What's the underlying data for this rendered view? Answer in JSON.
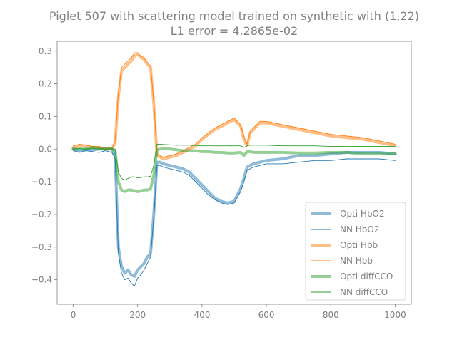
{
  "chart_data": {
    "type": "line",
    "title": "Piglet 507 with scattering model trained on synthetic with (1,22)",
    "subtitle": "L1 error = 4.2865e-02",
    "xlabel": "",
    "ylabel": "",
    "xlim": [
      -50,
      1050
    ],
    "ylim": [
      -0.475,
      0.33
    ],
    "xticks": [
      0,
      200,
      400,
      600,
      800,
      1000
    ],
    "yticks": [
      0.3,
      0.2,
      0.1,
      0.0,
      -0.1,
      -0.2,
      -0.3,
      -0.4
    ],
    "xtick_labels": [
      "0",
      "200",
      "400",
      "600",
      "800",
      "1000"
    ],
    "ytick_labels": [
      "0.3",
      "0.2",
      "0.1",
      "0.0",
      "−0.1",
      "−0.2",
      "−0.3",
      "−0.4"
    ],
    "grid": false,
    "legend_position": "lower-right",
    "series": [
      {
        "name": "Opti HbO2",
        "color": "#1f77b4",
        "style": "thick",
        "x": [
          0,
          20,
          40,
          60,
          80,
          100,
          120,
          130,
          140,
          150,
          160,
          170,
          180,
          190,
          200,
          210,
          220,
          230,
          240,
          250,
          260,
          270,
          280,
          300,
          320,
          340,
          360,
          380,
          400,
          420,
          440,
          460,
          480,
          500,
          520,
          530,
          540,
          550,
          560,
          580,
          600,
          650,
          700,
          750,
          800,
          850,
          900,
          950,
          1000
        ],
        "y": [
          0.0,
          -0.005,
          0.0,
          -0.003,
          0.0,
          0.002,
          0.0,
          -0.02,
          -0.3,
          -0.36,
          -0.38,
          -0.37,
          -0.385,
          -0.39,
          -0.37,
          -0.36,
          -0.35,
          -0.33,
          -0.32,
          -0.2,
          -0.04,
          -0.04,
          -0.045,
          -0.05,
          -0.055,
          -0.06,
          -0.07,
          -0.09,
          -0.11,
          -0.13,
          -0.15,
          -0.16,
          -0.165,
          -0.16,
          -0.12,
          -0.09,
          -0.055,
          -0.05,
          -0.045,
          -0.04,
          -0.035,
          -0.03,
          -0.02,
          -0.02,
          -0.015,
          -0.01,
          -0.01,
          -0.01,
          -0.015
        ]
      },
      {
        "name": "NN HbO2",
        "color": "#1f77b4",
        "style": "thin",
        "x": [
          0,
          20,
          40,
          60,
          80,
          100,
          120,
          130,
          140,
          150,
          160,
          170,
          180,
          190,
          200,
          210,
          220,
          230,
          240,
          250,
          260,
          270,
          280,
          300,
          320,
          340,
          360,
          380,
          400,
          420,
          440,
          460,
          480,
          500,
          520,
          530,
          540,
          550,
          560,
          580,
          600,
          650,
          700,
          750,
          800,
          850,
          900,
          950,
          1000
        ],
        "y": [
          -0.005,
          -0.01,
          -0.005,
          -0.008,
          -0.01,
          -0.005,
          -0.01,
          -0.03,
          -0.32,
          -0.38,
          -0.4,
          -0.395,
          -0.41,
          -0.42,
          -0.395,
          -0.385,
          -0.37,
          -0.35,
          -0.33,
          -0.21,
          -0.05,
          -0.05,
          -0.055,
          -0.06,
          -0.065,
          -0.07,
          -0.08,
          -0.1,
          -0.12,
          -0.14,
          -0.155,
          -0.165,
          -0.17,
          -0.165,
          -0.13,
          -0.1,
          -0.065,
          -0.06,
          -0.055,
          -0.05,
          -0.045,
          -0.045,
          -0.04,
          -0.035,
          -0.035,
          -0.03,
          -0.03,
          -0.03,
          -0.035
        ]
      },
      {
        "name": "Opti Hbb",
        "color": "#ff7f0e",
        "style": "thick",
        "x": [
          0,
          20,
          40,
          60,
          80,
          100,
          120,
          130,
          140,
          150,
          160,
          170,
          180,
          190,
          200,
          210,
          220,
          230,
          240,
          250,
          260,
          270,
          280,
          300,
          320,
          340,
          360,
          380,
          400,
          420,
          440,
          460,
          480,
          500,
          520,
          530,
          540,
          550,
          560,
          580,
          600,
          650,
          700,
          750,
          800,
          850,
          900,
          950,
          1000
        ],
        "y": [
          0.005,
          0.01,
          0.01,
          0.005,
          0.005,
          0.0,
          0.0,
          0.02,
          0.16,
          0.24,
          0.25,
          0.26,
          0.27,
          0.285,
          0.29,
          0.28,
          0.275,
          0.26,
          0.25,
          0.14,
          -0.02,
          -0.025,
          -0.03,
          -0.025,
          -0.02,
          -0.01,
          0.0,
          0.01,
          0.03,
          0.045,
          0.06,
          0.07,
          0.08,
          0.09,
          0.07,
          0.03,
          0.01,
          0.05,
          0.06,
          0.08,
          0.08,
          0.07,
          0.06,
          0.05,
          0.04,
          0.035,
          0.03,
          0.02,
          0.01
        ]
      },
      {
        "name": "NN Hbb",
        "color": "#ff7f0e",
        "style": "thin",
        "x": [
          0,
          20,
          40,
          60,
          80,
          100,
          120,
          130,
          140,
          150,
          160,
          170,
          180,
          190,
          200,
          210,
          220,
          230,
          240,
          250,
          260,
          270,
          280,
          300,
          320,
          340,
          360,
          380,
          400,
          420,
          440,
          460,
          480,
          500,
          520,
          530,
          540,
          550,
          560,
          580,
          600,
          650,
          700,
          750,
          800,
          850,
          900,
          950,
          1000
        ],
        "y": [
          0.01,
          0.015,
          0.012,
          0.008,
          0.008,
          0.003,
          0.002,
          0.025,
          0.17,
          0.25,
          0.26,
          0.27,
          0.28,
          0.295,
          0.295,
          0.285,
          0.28,
          0.265,
          0.255,
          0.145,
          -0.015,
          -0.02,
          -0.025,
          -0.02,
          -0.015,
          -0.005,
          0.005,
          0.015,
          0.035,
          0.05,
          0.065,
          0.075,
          0.085,
          0.095,
          0.075,
          0.04,
          0.015,
          0.055,
          0.065,
          0.085,
          0.085,
          0.075,
          0.065,
          0.055,
          0.045,
          0.04,
          0.035,
          0.025,
          0.015
        ]
      },
      {
        "name": "Opti diffCCO",
        "color": "#2ca02c",
        "style": "thick",
        "x": [
          0,
          20,
          40,
          60,
          80,
          100,
          120,
          130,
          140,
          150,
          160,
          170,
          180,
          190,
          200,
          210,
          220,
          230,
          240,
          250,
          260,
          270,
          280,
          300,
          320,
          340,
          360,
          380,
          400,
          420,
          440,
          460,
          480,
          500,
          520,
          530,
          540,
          550,
          560,
          580,
          600,
          650,
          700,
          750,
          800,
          850,
          900,
          950,
          1000
        ],
        "y": [
          0.0,
          0.0,
          0.0,
          0.005,
          0.0,
          0.0,
          0.0,
          -0.005,
          -0.1,
          -0.125,
          -0.13,
          -0.125,
          -0.125,
          -0.128,
          -0.13,
          -0.128,
          -0.125,
          -0.125,
          -0.122,
          -0.08,
          -0.002,
          0.0,
          0.002,
          0.0,
          -0.002,
          -0.005,
          -0.005,
          -0.005,
          -0.008,
          -0.008,
          -0.01,
          -0.01,
          -0.012,
          -0.012,
          -0.01,
          -0.02,
          -0.008,
          -0.008,
          -0.01,
          -0.01,
          -0.01,
          -0.01,
          -0.012,
          -0.012,
          -0.01,
          -0.01,
          -0.015,
          -0.015,
          -0.015
        ]
      },
      {
        "name": "NN diffCCO",
        "color": "#2ca02c",
        "style": "thin",
        "x": [
          0,
          20,
          40,
          60,
          80,
          100,
          120,
          130,
          140,
          150,
          160,
          170,
          180,
          190,
          200,
          210,
          220,
          230,
          240,
          250,
          260,
          270,
          280,
          300,
          320,
          340,
          360,
          380,
          400,
          420,
          440,
          460,
          480,
          500,
          520,
          530,
          540,
          550,
          560,
          580,
          600,
          650,
          700,
          750,
          800,
          850,
          900,
          950,
          1000
        ],
        "y": [
          0.0,
          0.002,
          0.0,
          0.003,
          0.002,
          0.0,
          0.002,
          0.0,
          -0.07,
          -0.09,
          -0.095,
          -0.09,
          -0.085,
          -0.085,
          -0.088,
          -0.087,
          -0.085,
          -0.085,
          -0.083,
          -0.05,
          0.015,
          0.015,
          0.014,
          0.013,
          0.012,
          0.012,
          0.012,
          0.011,
          0.01,
          0.01,
          0.01,
          0.01,
          0.01,
          0.01,
          0.01,
          0.005,
          0.01,
          0.012,
          0.012,
          0.012,
          0.012,
          0.01,
          0.01,
          0.01,
          0.008,
          0.008,
          0.008,
          0.008,
          0.008
        ]
      }
    ]
  }
}
